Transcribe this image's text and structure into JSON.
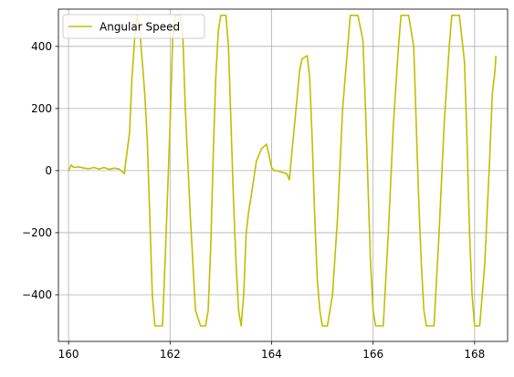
{
  "chart_data": {
    "type": "line",
    "title": "",
    "xlabel": "",
    "ylabel": "",
    "xlim": [
      159.8,
      168.65
    ],
    "ylim": [
      -550,
      520
    ],
    "xticks": [
      160,
      162,
      164,
      166,
      168
    ],
    "yticks": [
      -400,
      -200,
      0,
      200,
      400
    ],
    "grid": true,
    "legend": {
      "placement": "top-left"
    },
    "series": [
      {
        "name": "Angular Speed",
        "color": "#bfbf00",
        "x": [
          160.0,
          160.05,
          160.1,
          160.2,
          160.3,
          160.4,
          160.5,
          160.6,
          160.7,
          160.8,
          160.9,
          161.0,
          161.1,
          161.12,
          161.2,
          161.25,
          161.3,
          161.35,
          161.4,
          161.5,
          161.55,
          161.6,
          161.65,
          161.7,
          161.8,
          161.85,
          161.9,
          162.0,
          162.05,
          162.1,
          162.15,
          162.2,
          162.25,
          162.3,
          162.4,
          162.5,
          162.6,
          162.65,
          162.7,
          162.75,
          162.8,
          162.85,
          162.9,
          162.95,
          163.0,
          163.05,
          163.1,
          163.15,
          163.2,
          163.25,
          163.3,
          163.35,
          163.4,
          163.45,
          163.5,
          163.55,
          163.6,
          163.7,
          163.8,
          163.9,
          163.95,
          164.0,
          164.05,
          164.1,
          164.2,
          164.3,
          164.35,
          164.4,
          164.5,
          164.55,
          164.6,
          164.7,
          164.75,
          164.8,
          164.85,
          164.9,
          164.95,
          165.0,
          165.05,
          165.1,
          165.2,
          165.3,
          165.4,
          165.5,
          165.55,
          165.6,
          165.7,
          165.8,
          165.85,
          165.9,
          165.95,
          166.0,
          166.05,
          166.1,
          166.2,
          166.3,
          166.4,
          166.5,
          166.55,
          166.6,
          166.7,
          166.8,
          166.85,
          166.9,
          166.95,
          167.0,
          167.05,
          167.1,
          167.2,
          167.3,
          167.4,
          167.5,
          167.55,
          167.6,
          167.7,
          167.8,
          167.85,
          167.9,
          167.95,
          168.0,
          168.05,
          168.1,
          168.2,
          168.3,
          168.35,
          168.4,
          168.42
        ],
        "y": [
          0,
          18,
          10,
          12,
          8,
          6,
          10,
          5,
          10,
          4,
          8,
          5,
          -10,
          20,
          120,
          300,
          420,
          500,
          460,
          250,
          100,
          -150,
          -400,
          -500,
          -500,
          -500,
          -300,
          150,
          420,
          500,
          500,
          500,
          440,
          200,
          -150,
          -450,
          -500,
          -500,
          -500,
          -450,
          -250,
          50,
          300,
          450,
          500,
          500,
          500,
          400,
          150,
          -100,
          -300,
          -450,
          -500,
          -400,
          -200,
          -130,
          -80,
          30,
          70,
          85,
          50,
          10,
          0,
          0,
          -5,
          -10,
          -30,
          60,
          230,
          320,
          360,
          370,
          300,
          100,
          -150,
          -350,
          -450,
          -500,
          -500,
          -500,
          -400,
          -150,
          200,
          400,
          500,
          500,
          500,
          420,
          200,
          -50,
          -300,
          -450,
          -500,
          -500,
          -500,
          -200,
          150,
          400,
          500,
          500,
          500,
          400,
          150,
          -100,
          -300,
          -450,
          -500,
          -500,
          -500,
          -200,
          150,
          400,
          500,
          500,
          500,
          350,
          100,
          -200,
          -400,
          -500,
          -500,
          -500,
          -300,
          50,
          250,
          320,
          370
        ]
      }
    ]
  }
}
